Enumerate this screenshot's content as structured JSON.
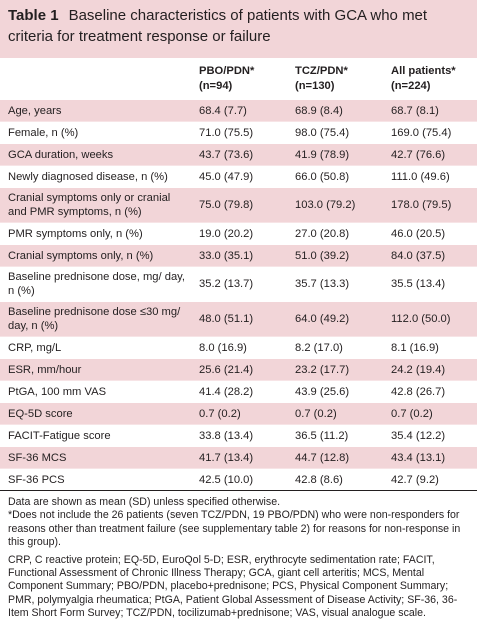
{
  "title": {
    "label": "Table 1",
    "text": "Baseline characteristics of patients with GCA who met criteria for treatment response or failure"
  },
  "columns": [
    {
      "name": "PBO/PDN*",
      "n": "(n=94)"
    },
    {
      "name": "TCZ/PDN*",
      "n": "(n=130)"
    },
    {
      "name": "All patients*",
      "n": "(n=224)"
    }
  ],
  "rows": [
    [
      "Age, years",
      "68.4 (7.7)",
      "68.9 (8.4)",
      "68.7 (8.1)"
    ],
    [
      "Female, n (%)",
      "71.0 (75.5)",
      "98.0 (75.4)",
      "169.0 (75.4)"
    ],
    [
      "GCA duration, weeks",
      "43.7 (73.6)",
      "41.9 (78.9)",
      "42.7 (76.6)"
    ],
    [
      "Newly diagnosed disease, n (%)",
      "45.0 (47.9)",
      "66.0 (50.8)",
      "111.0 (49.6)"
    ],
    [
      "Cranial symptoms only or cranial and PMR symptoms, n (%)",
      "75.0 (79.8)",
      "103.0 (79.2)",
      "178.0 (79.5)"
    ],
    [
      "PMR symptoms only, n (%)",
      "19.0 (20.2)",
      "27.0 (20.8)",
      "46.0 (20.5)"
    ],
    [
      "Cranial symptoms only, n (%)",
      "33.0 (35.1)",
      "51.0 (39.2)",
      "84.0 (37.5)"
    ],
    [
      "Baseline prednisone dose, mg/ day, n (%)",
      "35.2 (13.7)",
      "35.7 (13.3)",
      "35.5 (13.4)"
    ],
    [
      "Baseline prednisone dose ≤30 mg/ day, n (%)",
      "48.0 (51.1)",
      "64.0 (49.2)",
      "112.0 (50.0)"
    ],
    [
      "CRP, mg/L",
      "8.0 (16.9)",
      "8.2 (17.0)",
      "8.1 (16.9)"
    ],
    [
      "ESR, mm/hour",
      "25.6 (21.4)",
      "23.2 (17.7)",
      "24.2 (19.4)"
    ],
    [
      "PtGA, 100 mm VAS",
      "41.4 (28.2)",
      "43.9 (25.6)",
      "42.8 (26.7)"
    ],
    [
      "EQ-5D score",
      "0.7 (0.2)",
      "0.7 (0.2)",
      "0.7 (0.2)"
    ],
    [
      "FACIT-Fatigue score",
      "33.8 (13.4)",
      "36.5 (11.2)",
      "35.4 (12.2)"
    ],
    [
      "SF-36 MCS",
      "41.7 (13.4)",
      "44.7 (12.8)",
      "43.4 (13.1)"
    ],
    [
      "SF-36 PCS",
      "42.5 (10.0)",
      "42.8 (8.6)",
      "42.7 (9.2)"
    ]
  ],
  "footnotes": [
    "Data are shown as mean (SD) unless specified otherwise.",
    "*Does not include the 26 patients (seven TCZ/PDN, 19 PBO/PDN) who were non-responders for reasons other than treatment failure (see supplementary table 2) for reasons for non-response in this group).",
    "CRP, C reactive protein; EQ-5D, EuroQol 5-D; ESR, erythrocyte sedimentation rate; FACIT, Functional Assessment of Chronic Illness Therapy; GCA, giant cell arteritis; MCS, Mental Component Summary; PBO/PDN, placebo+prednisone; PCS, Physical Component Summary; PMR, polymyalgia rheumatica; PtGA, Patient Global Assessment of Disease Activity; SF-36, 36-Item Short Form Survey; TCZ/PDN, tocilizumab+prednisone; VAS, visual analogue scale."
  ]
}
